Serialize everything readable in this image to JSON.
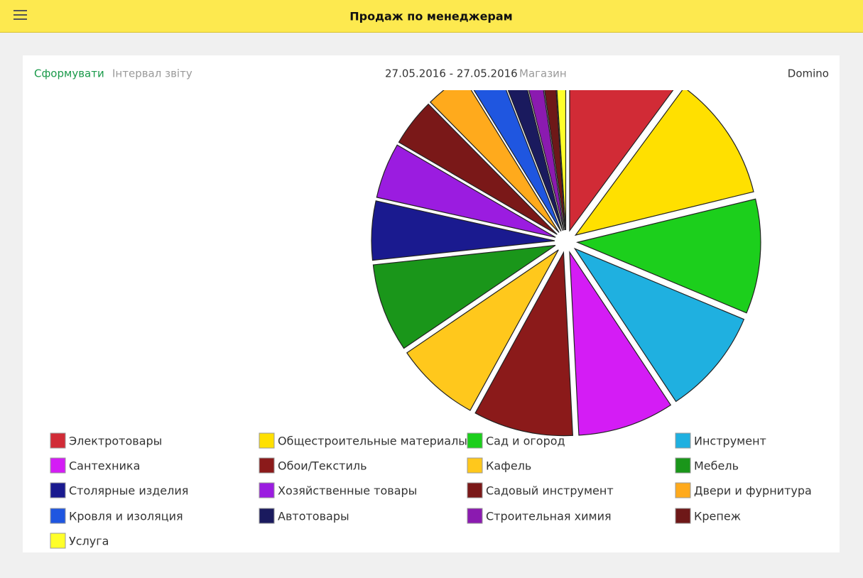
{
  "header": {
    "title": "Продаж по менеджерам"
  },
  "toolbar": {
    "build": "Сформувати",
    "interval_label": "Інтервал звіту",
    "interval": "27.05.2016 - 27.05.2016",
    "store_label": "Магазин",
    "store": "Domino"
  },
  "chart_data": {
    "type": "pie",
    "categories": [
      "Электротовары",
      "Общестроительные материалы",
      "Сад и огород",
      "Инструмент",
      "Сантехника",
      "Обои/Текстиль",
      "Кафель",
      "Мебель",
      "Столярные изделия",
      "Хозяйственные товары",
      "Садовый инструмент",
      "Двери и фурнитура",
      "Кровля и изоляция",
      "Автотовары",
      "Строительная химия",
      "Крепеж",
      "Услуга"
    ],
    "values": [
      10.1,
      11.1,
      10.1,
      9.4,
      8.5,
      8.8,
      7.5,
      7.8,
      5.2,
      4.9,
      4.2,
      3.6,
      2.9,
      2.0,
      1.6,
      1.3,
      1.0
    ],
    "colors": [
      "#d12b36",
      "#ffe000",
      "#1ccf1c",
      "#1fb0e0",
      "#d41cf5",
      "#8b1a1a",
      "#ffc81c",
      "#1a961a",
      "#1a1a8f",
      "#9b1ce0",
      "#7a1818",
      "#ffaa1c",
      "#1f56e0",
      "#1a1a5e",
      "#8b1ab0",
      "#6e1818",
      "#ffff2a"
    ]
  }
}
